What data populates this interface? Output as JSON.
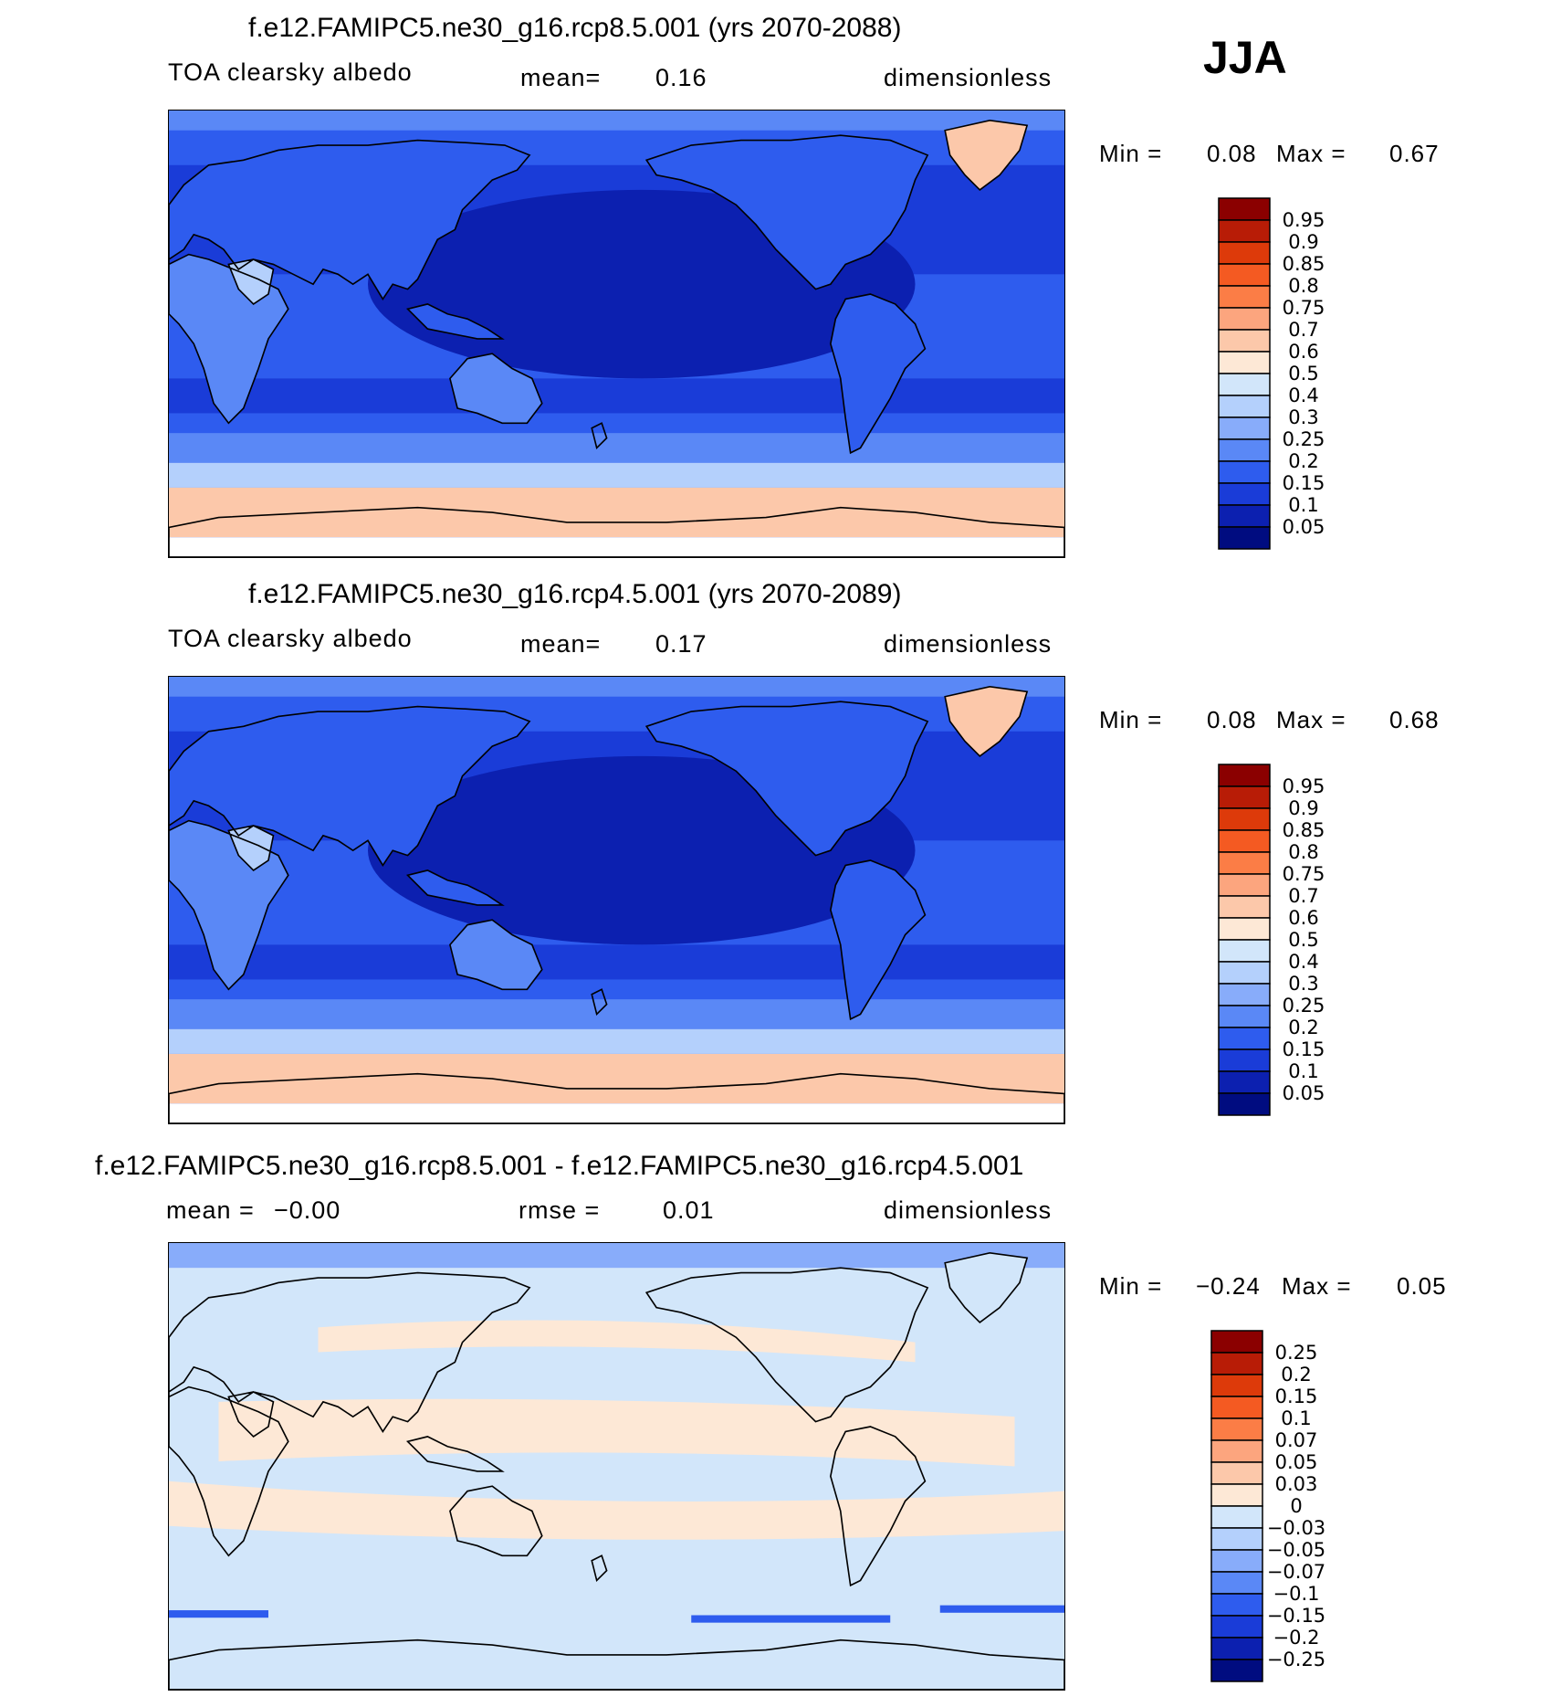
{
  "season": "JJA",
  "panels": [
    {
      "title": "f.e12.FAMIPC5.ne30_g16.rcp8.5.001 (yrs 2070-2088)",
      "left": "TOA clearsky albedo",
      "middle_label": "mean=",
      "middle_value": "0.16",
      "units": "dimensionless",
      "min_label": "Min =",
      "min_value": "0.08",
      "max_label": "Max =",
      "max_value": "0.67"
    },
    {
      "title": "f.e12.FAMIPC5.ne30_g16.rcp4.5.001 (yrs 2070-2089)",
      "left": "TOA clearsky albedo",
      "middle_label": "mean=",
      "middle_value": "0.17",
      "units": "dimensionless",
      "min_label": "Min =",
      "min_value": "0.08",
      "max_label": "Max =",
      "max_value": "0.68"
    },
    {
      "title": "f.e12.FAMIPC5.ne30_g16.rcp8.5.001 - f.e12.FAMIPC5.ne30_g16.rcp4.5.001",
      "left_label": "mean =",
      "left_value": "−0.00",
      "middle_label": "rmse =",
      "middle_value": "0.01",
      "units": "dimensionless",
      "min_label": "Min =",
      "min_value": "−0.24",
      "max_label": "Max =",
      "max_value": "0.05"
    }
  ],
  "colorbars": {
    "abs_labels": [
      "0.95",
      "0.9",
      "0.85",
      "0.8",
      "0.75",
      "0.7",
      "0.6",
      "0.5",
      "0.4",
      "0.3",
      "0.25",
      "0.2",
      "0.15",
      "0.1",
      "0.05"
    ],
    "abs_colors": [
      "#8b0000",
      "#b81c06",
      "#dd3a0a",
      "#f45a22",
      "#fb7d46",
      "#fca57e",
      "#fcc8aa",
      "#fde8d6",
      "#d2e6fa",
      "#b4d0fc",
      "#88acfa",
      "#5a88f6",
      "#2e5cee",
      "#1a3cd8",
      "#0c20b0",
      "#000c80"
    ],
    "diff_labels": [
      "0.25",
      "0.2",
      "0.15",
      "0.1",
      "0.07",
      "0.05",
      "0.03",
      "0",
      "−0.03",
      "−0.05",
      "−0.07",
      "−0.1",
      "−0.15",
      "−0.2",
      "−0.25"
    ],
    "diff_colors": [
      "#8b0000",
      "#b81c06",
      "#dd3a0a",
      "#f45a22",
      "#fb7d46",
      "#fca57e",
      "#fcc8aa",
      "#fde8d6",
      "#d2e6fa",
      "#b4d0fc",
      "#88acfa",
      "#5a88f6",
      "#2e5cee",
      "#1a3cd8",
      "#0c20b0",
      "#000c80"
    ]
  },
  "map_colors": {
    "ocean_deep": "#0c20b0",
    "ocean_mid": "#1a3cd8",
    "ocean_light": "#2e5cee",
    "land_low": "#2e5cee",
    "land_mid": "#5a88f6",
    "land_high": "#b4d0fc",
    "ice": "#fcc8aa",
    "ice_light": "#fde8d6",
    "diff_neg": "#d2e6fa",
    "diff_pos": "#fde8d6",
    "diff_blue": "#88acfa"
  }
}
